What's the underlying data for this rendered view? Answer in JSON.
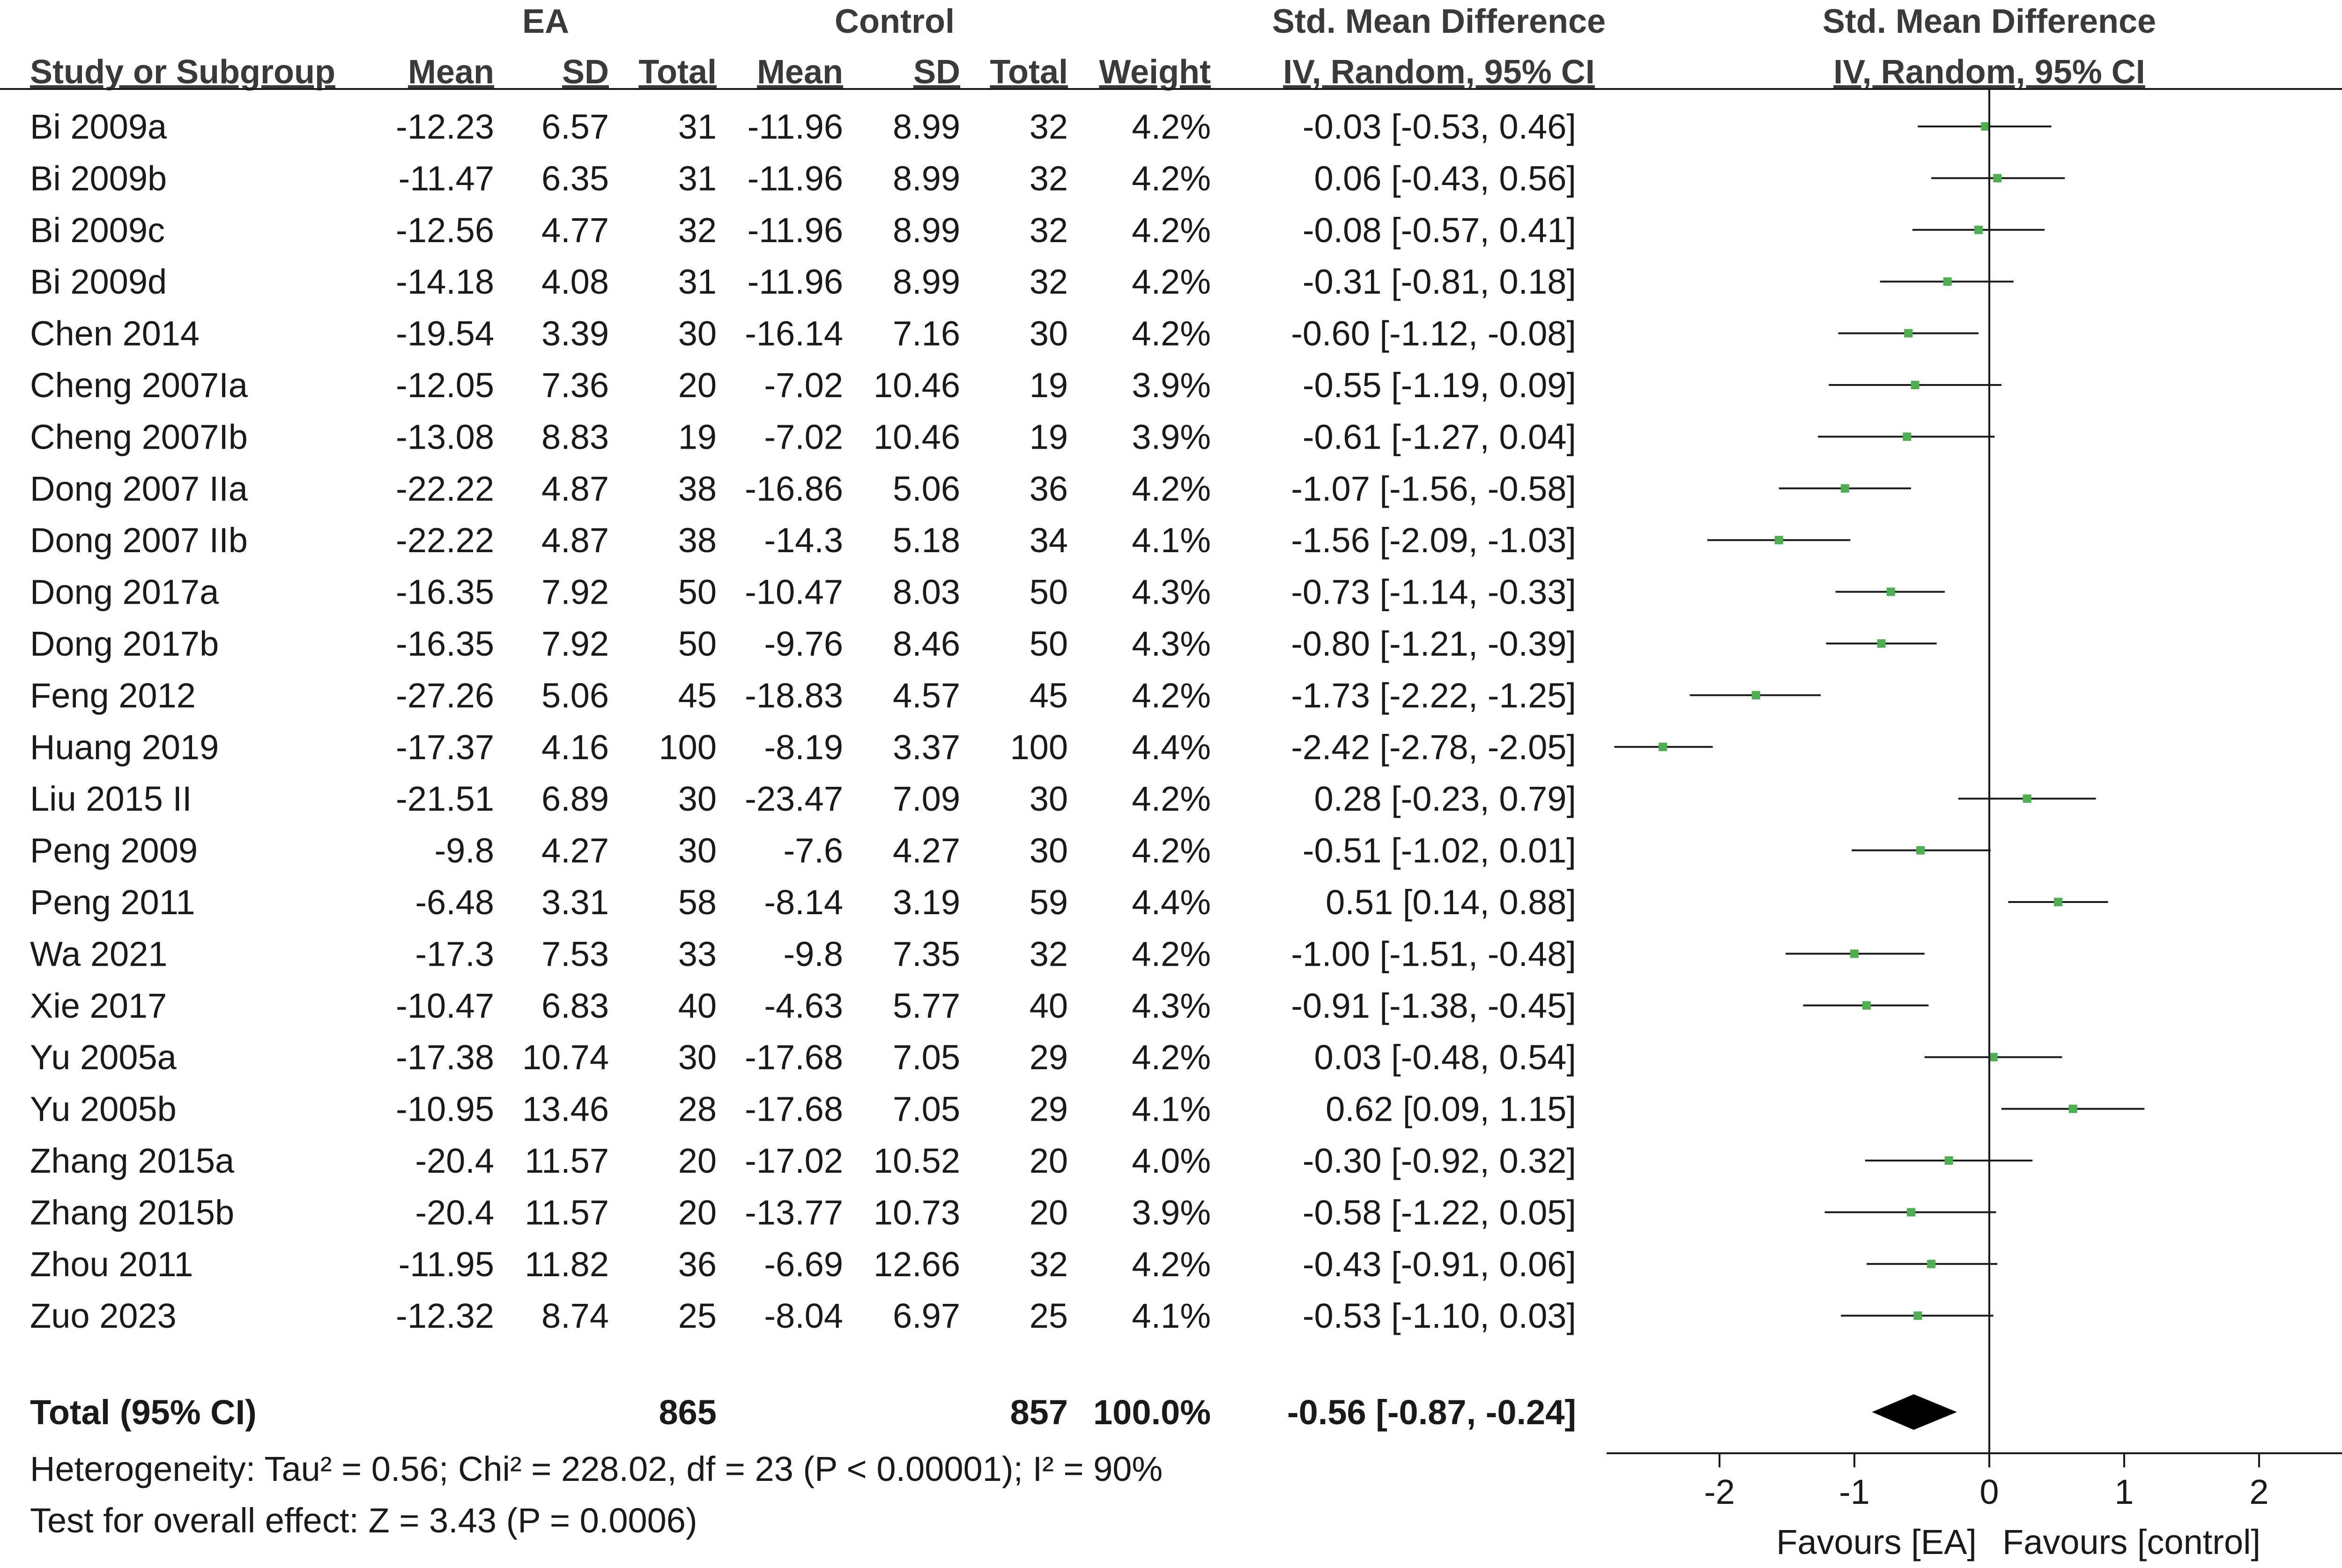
{
  "chart_data": {
    "type": "forest",
    "group_headers": {
      "experimental": "EA",
      "control": "Control",
      "effect_col": "Std. Mean Difference",
      "plot_col": "Std. Mean Difference"
    },
    "columns": {
      "study": "Study or Subgroup",
      "mean_e": "Mean",
      "sd_e": "SD",
      "total_e": "Total",
      "mean_c": "Mean",
      "sd_c": "SD",
      "total_c": "Total",
      "weight": "Weight",
      "effect": "IV, Random, 95% CI",
      "plot": "IV, Random, 95% CI"
    },
    "studies": [
      {
        "study": "Bi 2009a",
        "mean_e": "-12.23",
        "sd_e": "6.57",
        "total_e": "31",
        "mean_c": "-11.96",
        "sd_c": "8.99",
        "total_c": "32",
        "weight": "4.2%",
        "ci_text": "-0.03 [-0.53, 0.46]",
        "est": -0.03,
        "lo": -0.53,
        "hi": 0.46
      },
      {
        "study": "Bi 2009b",
        "mean_e": "-11.47",
        "sd_e": "6.35",
        "total_e": "31",
        "mean_c": "-11.96",
        "sd_c": "8.99",
        "total_c": "32",
        "weight": "4.2%",
        "ci_text": "0.06 [-0.43, 0.56]",
        "est": 0.06,
        "lo": -0.43,
        "hi": 0.56
      },
      {
        "study": "Bi 2009c",
        "mean_e": "-12.56",
        "sd_e": "4.77",
        "total_e": "32",
        "mean_c": "-11.96",
        "sd_c": "8.99",
        "total_c": "32",
        "weight": "4.2%",
        "ci_text": "-0.08 [-0.57, 0.41]",
        "est": -0.08,
        "lo": -0.57,
        "hi": 0.41
      },
      {
        "study": "Bi 2009d",
        "mean_e": "-14.18",
        "sd_e": "4.08",
        "total_e": "31",
        "mean_c": "-11.96",
        "sd_c": "8.99",
        "total_c": "32",
        "weight": "4.2%",
        "ci_text": "-0.31 [-0.81, 0.18]",
        "est": -0.31,
        "lo": -0.81,
        "hi": 0.18
      },
      {
        "study": "Chen 2014",
        "mean_e": "-19.54",
        "sd_e": "3.39",
        "total_e": "30",
        "mean_c": "-16.14",
        "sd_c": "7.16",
        "total_c": "30",
        "weight": "4.2%",
        "ci_text": "-0.60 [-1.12, -0.08]",
        "est": -0.6,
        "lo": -1.12,
        "hi": -0.08
      },
      {
        "study": "Cheng 2007Ia",
        "mean_e": "-12.05",
        "sd_e": "7.36",
        "total_e": "20",
        "mean_c": "-7.02",
        "sd_c": "10.46",
        "total_c": "19",
        "weight": "3.9%",
        "ci_text": "-0.55 [-1.19, 0.09]",
        "est": -0.55,
        "lo": -1.19,
        "hi": 0.09
      },
      {
        "study": "Cheng 2007Ib",
        "mean_e": "-13.08",
        "sd_e": "8.83",
        "total_e": "19",
        "mean_c": "-7.02",
        "sd_c": "10.46",
        "total_c": "19",
        "weight": "3.9%",
        "ci_text": "-0.61 [-1.27, 0.04]",
        "est": -0.61,
        "lo": -1.27,
        "hi": 0.04
      },
      {
        "study": "Dong 2007 IIa",
        "mean_e": "-22.22",
        "sd_e": "4.87",
        "total_e": "38",
        "mean_c": "-16.86",
        "sd_c": "5.06",
        "total_c": "36",
        "weight": "4.2%",
        "ci_text": "-1.07 [-1.56, -0.58]",
        "est": -1.07,
        "lo": -1.56,
        "hi": -0.58
      },
      {
        "study": "Dong 2007 IIb",
        "mean_e": "-22.22",
        "sd_e": "4.87",
        "total_e": "38",
        "mean_c": "-14.3",
        "sd_c": "5.18",
        "total_c": "34",
        "weight": "4.1%",
        "ci_text": "-1.56 [-2.09, -1.03]",
        "est": -1.56,
        "lo": -2.09,
        "hi": -1.03
      },
      {
        "study": "Dong 2017a",
        "mean_e": "-16.35",
        "sd_e": "7.92",
        "total_e": "50",
        "mean_c": "-10.47",
        "sd_c": "8.03",
        "total_c": "50",
        "weight": "4.3%",
        "ci_text": "-0.73 [-1.14, -0.33]",
        "est": -0.73,
        "lo": -1.14,
        "hi": -0.33
      },
      {
        "study": "Dong 2017b",
        "mean_e": "-16.35",
        "sd_e": "7.92",
        "total_e": "50",
        "mean_c": "-9.76",
        "sd_c": "8.46",
        "total_c": "50",
        "weight": "4.3%",
        "ci_text": "-0.80 [-1.21, -0.39]",
        "est": -0.8,
        "lo": -1.21,
        "hi": -0.39
      },
      {
        "study": "Feng 2012",
        "mean_e": "-27.26",
        "sd_e": "5.06",
        "total_e": "45",
        "mean_c": "-18.83",
        "sd_c": "4.57",
        "total_c": "45",
        "weight": "4.2%",
        "ci_text": "-1.73 [-2.22, -1.25]",
        "est": -1.73,
        "lo": -2.22,
        "hi": -1.25
      },
      {
        "study": "Huang 2019",
        "mean_e": "-17.37",
        "sd_e": "4.16",
        "total_e": "100",
        "mean_c": "-8.19",
        "sd_c": "3.37",
        "total_c": "100",
        "weight": "4.4%",
        "ci_text": "-2.42 [-2.78, -2.05]",
        "est": -2.42,
        "lo": -2.78,
        "hi": -2.05
      },
      {
        "study": "Liu 2015 II",
        "mean_e": "-21.51",
        "sd_e": "6.89",
        "total_e": "30",
        "mean_c": "-23.47",
        "sd_c": "7.09",
        "total_c": "30",
        "weight": "4.2%",
        "ci_text": "0.28 [-0.23, 0.79]",
        "est": 0.28,
        "lo": -0.23,
        "hi": 0.79
      },
      {
        "study": "Peng 2009",
        "mean_e": "-9.8",
        "sd_e": "4.27",
        "total_e": "30",
        "mean_c": "-7.6",
        "sd_c": "4.27",
        "total_c": "30",
        "weight": "4.2%",
        "ci_text": "-0.51 [-1.02, 0.01]",
        "est": -0.51,
        "lo": -1.02,
        "hi": 0.01
      },
      {
        "study": "Peng 2011",
        "mean_e": "-6.48",
        "sd_e": "3.31",
        "total_e": "58",
        "mean_c": "-8.14",
        "sd_c": "3.19",
        "total_c": "59",
        "weight": "4.4%",
        "ci_text": "0.51 [0.14, 0.88]",
        "est": 0.51,
        "lo": 0.14,
        "hi": 0.88
      },
      {
        "study": "Wa 2021",
        "mean_e": "-17.3",
        "sd_e": "7.53",
        "total_e": "33",
        "mean_c": "-9.8",
        "sd_c": "7.35",
        "total_c": "32",
        "weight": "4.2%",
        "ci_text": "-1.00 [-1.51, -0.48]",
        "est": -1.0,
        "lo": -1.51,
        "hi": -0.48
      },
      {
        "study": "Xie 2017",
        "mean_e": "-10.47",
        "sd_e": "6.83",
        "total_e": "40",
        "mean_c": "-4.63",
        "sd_c": "5.77",
        "total_c": "40",
        "weight": "4.3%",
        "ci_text": "-0.91 [-1.38, -0.45]",
        "est": -0.91,
        "lo": -1.38,
        "hi": -0.45
      },
      {
        "study": "Yu 2005a",
        "mean_e": "-17.38",
        "sd_e": "10.74",
        "total_e": "30",
        "mean_c": "-17.68",
        "sd_c": "7.05",
        "total_c": "29",
        "weight": "4.2%",
        "ci_text": "0.03 [-0.48, 0.54]",
        "est": 0.03,
        "lo": -0.48,
        "hi": 0.54
      },
      {
        "study": "Yu 2005b",
        "mean_e": "-10.95",
        "sd_e": "13.46",
        "total_e": "28",
        "mean_c": "-17.68",
        "sd_c": "7.05",
        "total_c": "29",
        "weight": "4.1%",
        "ci_text": "0.62 [0.09, 1.15]",
        "est": 0.62,
        "lo": 0.09,
        "hi": 1.15
      },
      {
        "study": "Zhang 2015a",
        "mean_e": "-20.4",
        "sd_e": "11.57",
        "total_e": "20",
        "mean_c": "-17.02",
        "sd_c": "10.52",
        "total_c": "20",
        "weight": "4.0%",
        "ci_text": "-0.30 [-0.92, 0.32]",
        "est": -0.3,
        "lo": -0.92,
        "hi": 0.32
      },
      {
        "study": "Zhang 2015b",
        "mean_e": "-20.4",
        "sd_e": "11.57",
        "total_e": "20",
        "mean_c": "-13.77",
        "sd_c": "10.73",
        "total_c": "20",
        "weight": "3.9%",
        "ci_text": "-0.58 [-1.22, 0.05]",
        "est": -0.58,
        "lo": -1.22,
        "hi": 0.05
      },
      {
        "study": "Zhou 2011",
        "mean_e": "-11.95",
        "sd_e": "11.82",
        "total_e": "36",
        "mean_c": "-6.69",
        "sd_c": "12.66",
        "total_c": "32",
        "weight": "4.2%",
        "ci_text": "-0.43 [-0.91, 0.06]",
        "est": -0.43,
        "lo": -0.91,
        "hi": 0.06
      },
      {
        "study": "Zuo 2023",
        "mean_e": "-12.32",
        "sd_e": "8.74",
        "total_e": "25",
        "mean_c": "-8.04",
        "sd_c": "6.97",
        "total_c": "25",
        "weight": "4.1%",
        "ci_text": "-0.53 [-1.10, 0.03]",
        "est": -0.53,
        "lo": -1.1,
        "hi": 0.03
      }
    ],
    "total": {
      "label": "Total (95% CI)",
      "total_e": "865",
      "total_c": "857",
      "weight": "100.0%",
      "ci_text": "-0.56 [-0.87, -0.24]",
      "est": -0.56,
      "lo": -0.87,
      "hi": -0.24
    },
    "heterogeneity": "Heterogeneity: Tau² = 0.56; Chi² = 228.02, df = 23 (P < 0.00001); I² = 90%",
    "overall_effect": "Test for overall effect: Z = 3.43 (P = 0.0006)",
    "x_axis": {
      "ticks": [
        -2,
        -1,
        0,
        1,
        2
      ],
      "tick_labels": [
        "-2",
        "-1",
        "0",
        "1",
        "2"
      ],
      "range": [
        -2.9,
        2.9
      ]
    },
    "favours_left": "Favours [EA]",
    "favours_right": "Favours [control]",
    "colors": {
      "marker": "#4caf50",
      "line": "#1a1a1a",
      "diamond": "#000000"
    }
  }
}
